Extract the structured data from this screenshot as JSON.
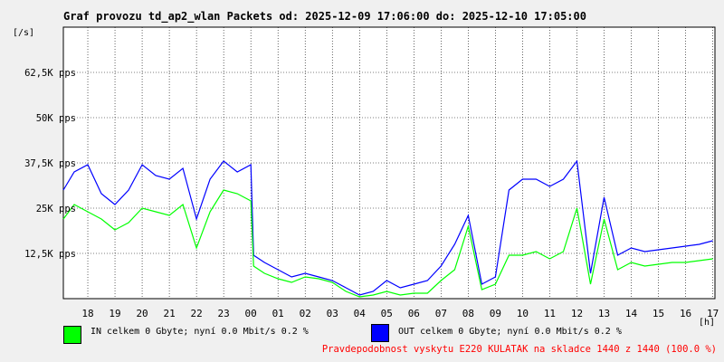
{
  "title": "Graf provozu td_ap2_wlan Packets od: 2025-12-09 17:06:00 do: 2025-12-10 17:05:00",
  "y_unit": "[/s]",
  "x_unit": "[h]",
  "legend": [
    {
      "label": "IN celkem 0 Gbyte; nyní   0.0 Mbit/s 0.2 %",
      "color": "#00ff00"
    },
    {
      "label": "OUT celkem 0 Gbyte; nyní   0.0 Mbit/s 0.2 %",
      "color": "#0000ff"
    }
  ],
  "footer": "Pravdepodobnost vyskytu E220 KULATAK na skladce 1440 z 1440 (100.0 %)",
  "chart_data": {
    "type": "line",
    "title": "Graf provozu td_ap2_wlan Packets od: 2025-12-09 17:06:00 do: 2025-12-10 17:05:00",
    "xlabel": "[h]",
    "ylabel": "[/s]",
    "ylim": [
      0,
      75000
    ],
    "xlim": [
      17.1,
      41.08
    ],
    "grid": true,
    "x_tick_values": [
      18,
      19,
      20,
      21,
      22,
      23,
      24,
      25,
      26,
      27,
      28,
      29,
      30,
      31,
      32,
      33,
      34,
      35,
      36,
      37,
      38,
      39,
      40,
      41
    ],
    "x_tick_labels": [
      "18",
      "19",
      "20",
      "21",
      "22",
      "23",
      "00",
      "01",
      "02",
      "03",
      "04",
      "05",
      "06",
      "07",
      "08",
      "09",
      "10",
      "11",
      "12",
      "13",
      "14",
      "15",
      "16",
      "17"
    ],
    "y_tick_values": [
      12500,
      25000,
      37500,
      50000,
      62500
    ],
    "y_tick_labels": [
      "12,5K pps",
      "25K pps",
      "37,5K pps",
      "50K pps",
      "62,5K pps"
    ],
    "x": [
      17.1,
      17.5,
      18,
      18.5,
      19,
      19.5,
      20,
      20.5,
      21,
      21.5,
      22,
      22.5,
      23,
      23.5,
      24,
      24.1,
      24.5,
      25,
      25.5,
      26,
      26.5,
      27,
      27.5,
      28,
      28.5,
      29,
      29.5,
      30,
      30.5,
      31,
      31.5,
      32,
      32.5,
      33,
      33.5,
      34,
      34.5,
      35,
      35.5,
      36,
      36.5,
      37,
      37.5,
      38,
      38.5,
      39,
      39.5,
      40,
      40.5,
      41
    ],
    "series": [
      {
        "name": "IN",
        "color": "#00ff00",
        "values": [
          22000,
          26000,
          24000,
          22000,
          19000,
          21000,
          25000,
          24000,
          23000,
          26000,
          14000,
          24000,
          30000,
          29000,
          27000,
          9000,
          7000,
          5500,
          4500,
          6000,
          5500,
          4500,
          2000,
          500,
          1000,
          2000,
          1000,
          1500,
          1500,
          5000,
          8000,
          20000,
          2500,
          4000,
          12000,
          12000,
          13000,
          11000,
          13000,
          25000,
          4000,
          22000,
          8000,
          10000,
          9000,
          9500,
          10000,
          10000,
          10500,
          11000
        ]
      },
      {
        "name": "OUT",
        "color": "#0000ff",
        "values": [
          30000,
          35000,
          37000,
          29000,
          26000,
          30000,
          37000,
          34000,
          33000,
          36000,
          22000,
          33000,
          38000,
          35000,
          37000,
          12000,
          10000,
          8000,
          6000,
          7000,
          6000,
          5000,
          3000,
          1000,
          2000,
          5000,
          3000,
          4000,
          5000,
          9000,
          15000,
          23000,
          4000,
          6000,
          30000,
          33000,
          33000,
          31000,
          33000,
          38000,
          7000,
          28000,
          12000,
          14000,
          13000,
          13500,
          14000,
          14500,
          15000,
          16000
        ]
      }
    ]
  }
}
